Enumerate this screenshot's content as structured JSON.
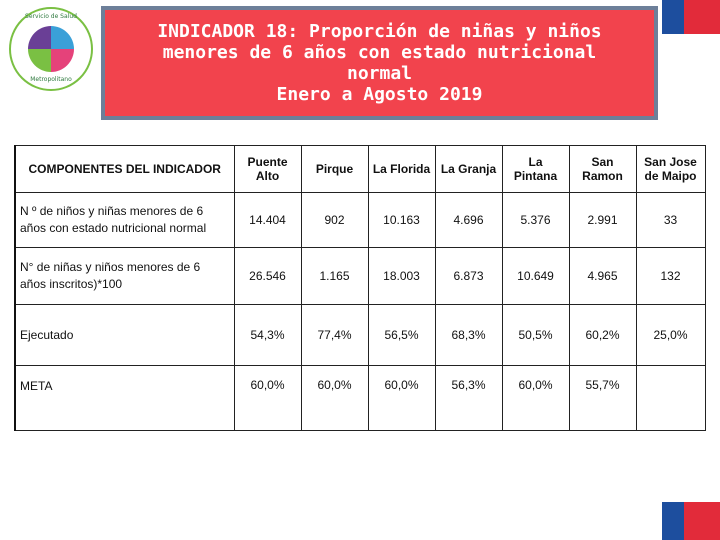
{
  "logo": {
    "ring_text_top": "Servicio de Salud",
    "ring_text_bottom": "Metropolitano"
  },
  "title": {
    "lines": [
      "INDICADOR 18: Proporción de niñas y niños",
      "menores de 6 años con estado nutricional",
      "normal",
      "Enero a Agosto 2019"
    ]
  },
  "colors": {
    "title_bg": "#f2434d",
    "title_border": "#6d7f99",
    "flag_blue": "#1d4e9e",
    "flag_red": "#e22b3a"
  },
  "table": {
    "headers": [
      "COMPONENTES DEL INDICADOR",
      "Puente Alto",
      "Pirque",
      "La Florida",
      "La Granja",
      "La Pintana",
      "San Ramon",
      "San Jose de Maipo"
    ],
    "rows": [
      {
        "label_lines": [
          "N º de niños y niñas menores de 6",
          "años con estado nutricional normal"
        ],
        "values": [
          "14.404",
          "902",
          "10.163",
          "4.696",
          "5.376",
          "2.991",
          "33"
        ]
      },
      {
        "label_lines": [
          "N° de niñas y niños menores de 6",
          "años inscritos)*100"
        ],
        "values": [
          "26.546",
          "1.165",
          "18.003",
          "6.873",
          "10.649",
          "4.965",
          "132"
        ]
      },
      {
        "label_lines": [
          "Ejecutado"
        ],
        "values": [
          "54,3%",
          "77,4%",
          "56,5%",
          "68,3%",
          "50,5%",
          "60,2%",
          "25,0%"
        ]
      },
      {
        "label_lines": [
          "META"
        ],
        "values": [
          "60,0%",
          "60,0%",
          "60,0%",
          "56,3%",
          "60,0%",
          "55,7%",
          ""
        ]
      }
    ]
  }
}
